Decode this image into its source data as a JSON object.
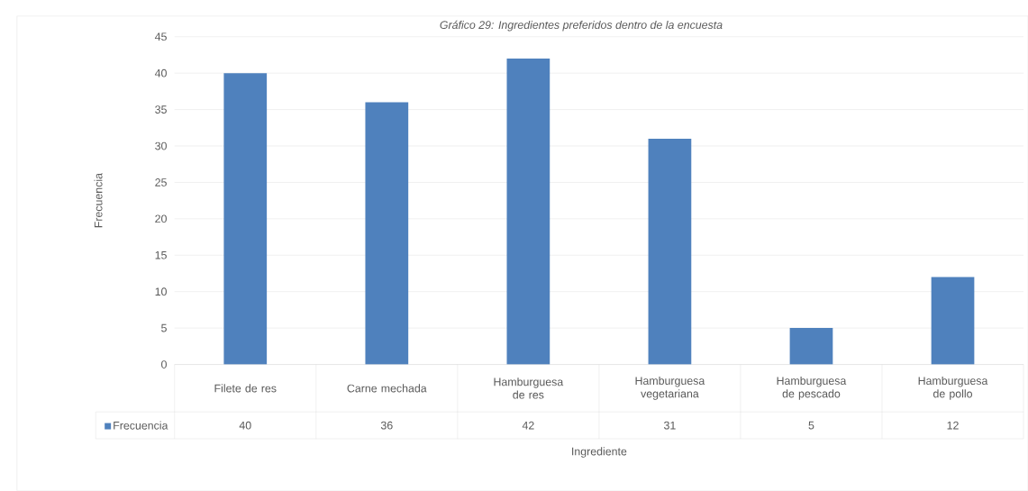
{
  "chart_data": {
    "type": "bar",
    "title": "Gráfico 29: Ingredientes preferidos dentro de la encuesta",
    "xlabel": "Ingrediente",
    "ylabel": "Frecuencia",
    "categories": [
      "Filete de res",
      "Carne mechada",
      "Hamburguesa de res",
      "Hamburguesa vegetariana",
      "Hamburguesa de pescado",
      "Hamburguesa de pollo"
    ],
    "series": [
      {
        "name": "Frecuencia",
        "color": "#4f81bd",
        "values": [
          40,
          36,
          42,
          31,
          5,
          12
        ]
      }
    ],
    "ylim": [
      0,
      45
    ],
    "yticks": [
      0,
      5,
      10,
      15,
      20,
      25,
      30,
      35,
      40,
      45
    ],
    "grid": "y",
    "data_labels": true,
    "legend": "bottom"
  }
}
